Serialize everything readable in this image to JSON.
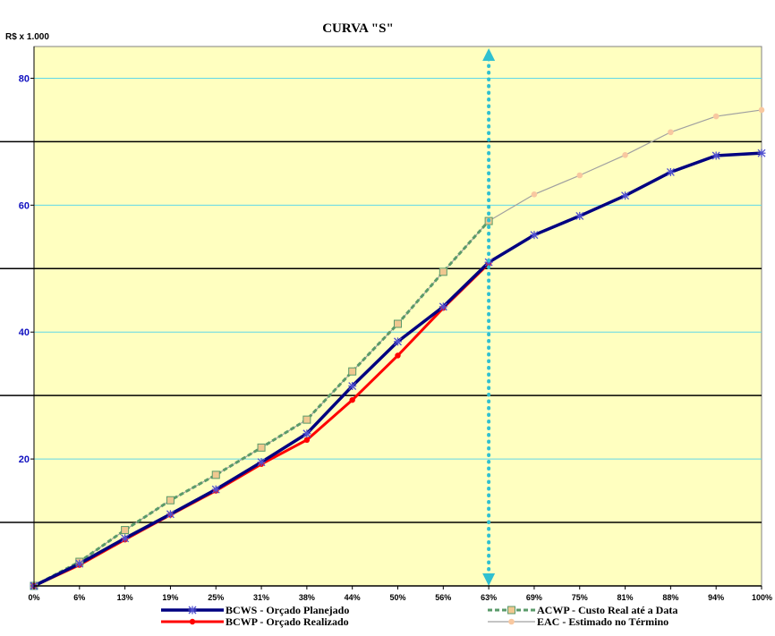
{
  "chart_data": {
    "type": "line",
    "title": "CURVA \"S\"",
    "unit_label": "R$ x 1.000",
    "ylim": [
      0,
      85
    ],
    "y_ticks": [
      "20",
      "40",
      "60",
      "80"
    ],
    "y_tick_values": [
      20,
      40,
      60,
      80
    ],
    "categories": [
      "0%",
      "6%",
      "13%",
      "19%",
      "25%",
      "31%",
      "38%",
      "44%",
      "50%",
      "56%",
      "63%",
      "69%",
      "75%",
      "81%",
      "88%",
      "94%",
      "100%"
    ],
    "series": [
      {
        "name": "BCWS - Orçado Planejado",
        "color": "#000080",
        "marker": "asterisk",
        "values": [
          0,
          3.5,
          7.5,
          11.3,
          15.2,
          19.5,
          24,
          31.5,
          38.5,
          44,
          51,
          55.3,
          58.3,
          61.5,
          65.2,
          67.8,
          68.2
        ]
      },
      {
        "name": "BCWP - Orçado Realizado",
        "color": "#ff0000",
        "marker": "dot",
        "values": [
          0,
          3.3,
          7.3,
          11.2,
          15,
          19.2,
          23,
          29.3,
          36.3,
          43.8,
          50.8,
          null,
          null,
          null,
          null,
          null,
          null
        ]
      },
      {
        "name": "ACWP - Custo Real até a Data",
        "color": "#5a9a6a",
        "marker": "square",
        "values": [
          0,
          3.8,
          8.8,
          13.5,
          17.5,
          21.8,
          26.2,
          33.8,
          41.3,
          49.5,
          57.5,
          null,
          null,
          null,
          null,
          null,
          null
        ]
      },
      {
        "name": "EAC - Estimado no Término",
        "color": "#a0a0a0",
        "marker": "peach-dot",
        "values": [
          0,
          3.8,
          8.8,
          13.5,
          17.5,
          21.8,
          26.2,
          33.8,
          41.3,
          49.5,
          57.5,
          61.7,
          64.7,
          67.9,
          71.5,
          74,
          75
        ]
      }
    ],
    "black_gridlines": [
      10,
      30,
      50,
      70
    ],
    "cyan_gridlines": [
      20,
      40,
      60,
      80
    ],
    "status_line_at": "63%",
    "legend_placement": "bottom",
    "colors": {
      "plot_bg": "#ffffc0",
      "status_line": "#30c0d0"
    }
  }
}
